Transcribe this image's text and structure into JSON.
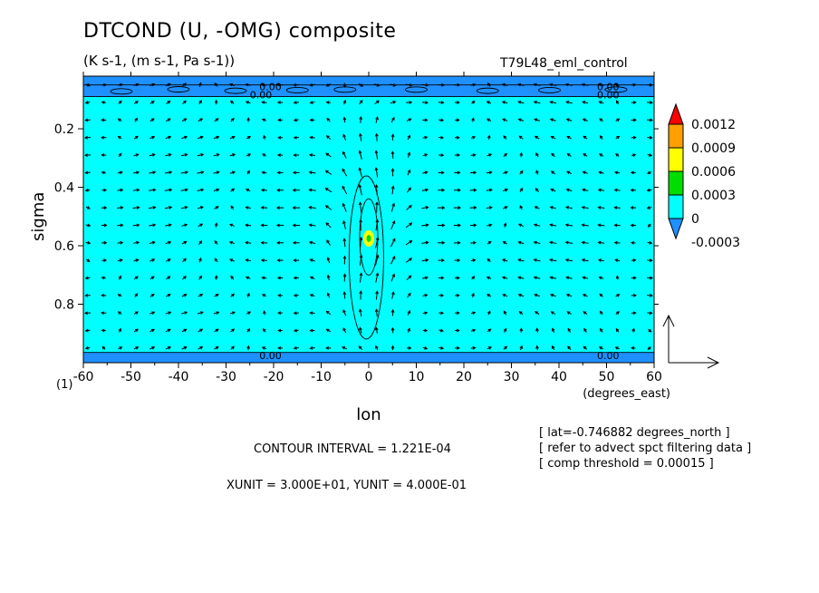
{
  "title": "DTCOND (U, -OMG) composite",
  "subtitle": "(K s-1, (m s-1, Pa s-1))",
  "run_label": "T79L48_eml_control",
  "chart_data": {
    "type": "heatmap",
    "xlabel": "lon",
    "xunit_label": "(degrees_east)",
    "ylabel": "sigma",
    "xlim": [
      -60,
      60
    ],
    "ylim": [
      1.0,
      0.02
    ],
    "x_ticks": [
      -60,
      -50,
      -40,
      -30,
      -20,
      -10,
      0,
      10,
      20,
      30,
      40,
      50,
      60
    ],
    "x_tick_labels": [
      "-60",
      "-50",
      "-40",
      "-30",
      "-20",
      "-10",
      "0",
      "10",
      "20",
      "30",
      "40",
      "50",
      "60"
    ],
    "y_ticks": [
      0.2,
      0.4,
      0.6,
      0.8
    ],
    "y_tick_labels": [
      "0.2",
      "0.4",
      "0.6",
      "0.8"
    ],
    "corner_label": "(1)",
    "contour_labels": [
      {
        "text": "0.00",
        "x": -23,
        "y": 0.055
      },
      {
        "text": "0.00",
        "x": -25,
        "y": 0.083
      },
      {
        "text": "0.00",
        "x": 48,
        "y": 0.055
      },
      {
        "text": "0.00",
        "x": 48,
        "y": 0.083
      },
      {
        "text": "0.00",
        "x": -23,
        "y": 0.975
      },
      {
        "text": "0.00",
        "x": 48,
        "y": 0.975
      }
    ],
    "colorbar": {
      "levels": [
        "0.0012",
        "0.0009",
        "0.0006",
        "0.0003",
        "0",
        "-0.0003"
      ],
      "colors": [
        "#ff0000",
        "#ffa000",
        "#ffff00",
        "#00dd00",
        "#00ffff",
        "#1e90ff"
      ]
    },
    "fill_colors": {
      "background": "#00ffff",
      "negative": "#1e90ff",
      "heating": "#ffff00",
      "heating_core": "#00dd00"
    },
    "reference_vector": {
      "xunit": 30.0,
      "yunit": 0.4
    }
  },
  "footer": {
    "contour_interval": "CONTOUR INTERVAL = 1.221E-04",
    "units": "XUNIT = 3.000E+01, YUNIT = 4.000E-01",
    "notes": [
      "[ lat=-0.746882 degrees_north ]",
      "[ refer to advect spct filtering data ]",
      "[ comp threshold = 0.00015 ]"
    ]
  }
}
